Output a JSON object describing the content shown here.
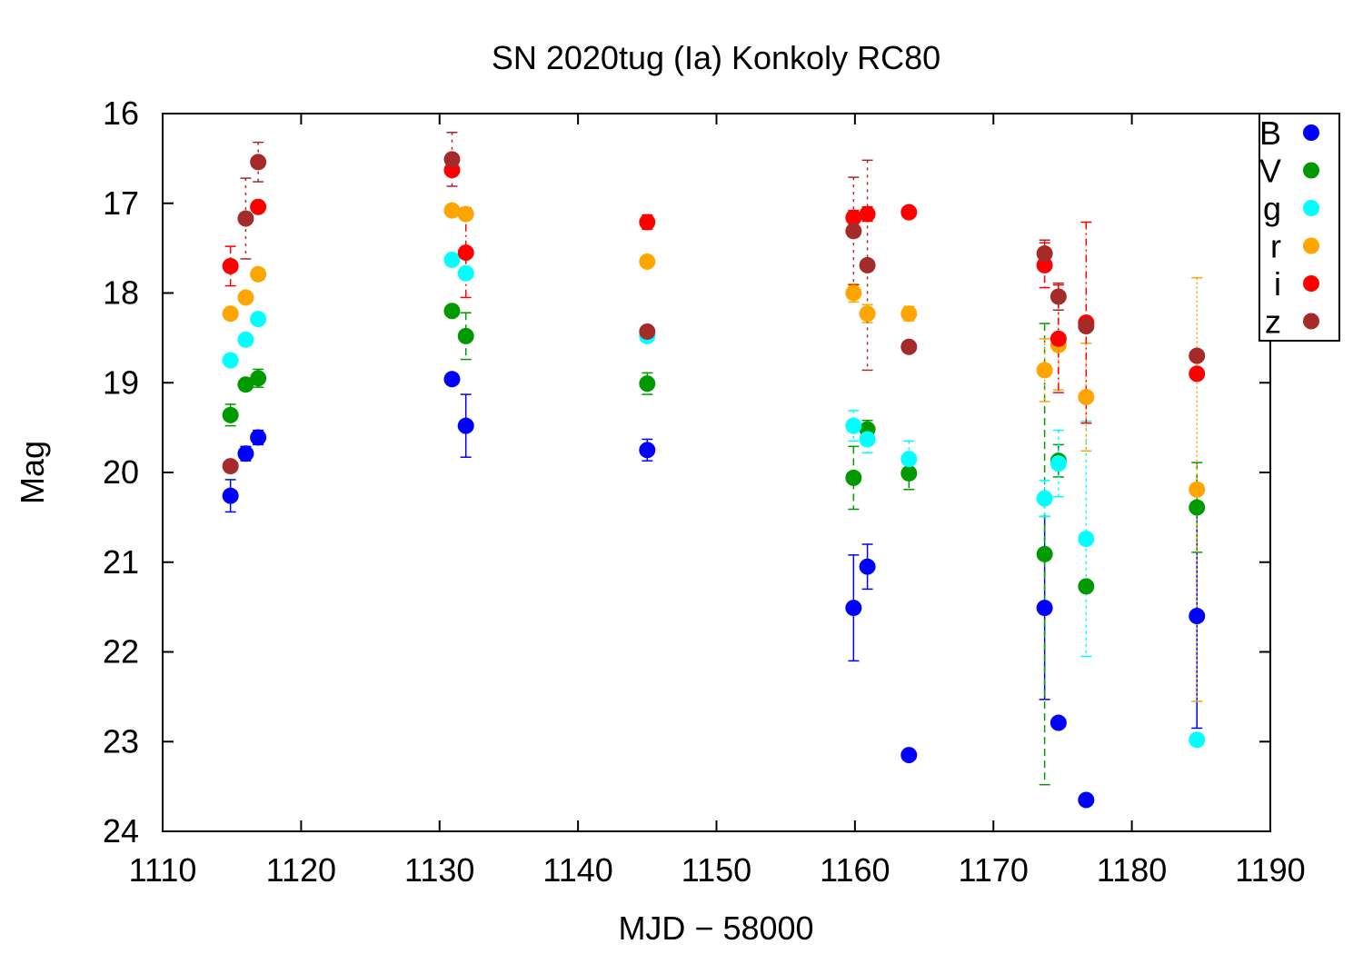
{
  "chart_data": {
    "type": "scatter",
    "title": "SN 2020tug (Ia) Konkoly RC80",
    "xlabel": "MJD − 58000",
    "ylabel": "Mag",
    "xlim": [
      1110,
      1190
    ],
    "ylim": [
      24,
      16
    ],
    "y_inverted": true,
    "xticks": [
      "1110",
      "1120",
      "1130",
      "1140",
      "1150",
      "1160",
      "1170",
      "1180",
      "1190"
    ],
    "yticks": [
      "16",
      "17",
      "18",
      "19",
      "20",
      "21",
      "22",
      "23",
      "24"
    ],
    "legend_position": "top-right",
    "grid": false,
    "series": [
      {
        "name": "B",
        "color": "#0000ff",
        "points": [
          {
            "x": 1114.9,
            "y": 20.26,
            "err": 0.18
          },
          {
            "x": 1116.0,
            "y": 19.79,
            "err": 0.08
          },
          {
            "x": 1116.9,
            "y": 19.61,
            "err": 0.08
          },
          {
            "x": 1130.9,
            "y": 18.96,
            "err": 0.06
          },
          {
            "x": 1131.9,
            "y": 19.48,
            "err": 0.35
          },
          {
            "x": 1145.0,
            "y": 19.75,
            "err": 0.12
          },
          {
            "x": 1159.9,
            "y": 21.51,
            "err": 0.59
          },
          {
            "x": 1160.9,
            "y": 21.05,
            "err": 0.25
          },
          {
            "x": 1163.9,
            "y": 23.15,
            "err": 0
          },
          {
            "x": 1173.7,
            "y": 21.51,
            "err": 1.02
          },
          {
            "x": 1174.7,
            "y": 22.79,
            "err": 0
          },
          {
            "x": 1176.7,
            "y": 23.65,
            "err": 0
          },
          {
            "x": 1184.7,
            "y": 21.6,
            "err": 1.25
          }
        ]
      },
      {
        "name": "V",
        "color": "#009900",
        "points": [
          {
            "x": 1114.9,
            "y": 19.36,
            "err": 0.12
          },
          {
            "x": 1116.0,
            "y": 19.02,
            "err": 0.06
          },
          {
            "x": 1116.9,
            "y": 18.95,
            "err": 0.1
          },
          {
            "x": 1130.9,
            "y": 18.2,
            "err": 0.05
          },
          {
            "x": 1131.9,
            "y": 18.48,
            "err": 0.26
          },
          {
            "x": 1145.0,
            "y": 19.01,
            "err": 0.12
          },
          {
            "x": 1159.9,
            "y": 20.06,
            "err": 0.35
          },
          {
            "x": 1160.9,
            "y": 19.52,
            "err": 0.1
          },
          {
            "x": 1163.9,
            "y": 20.01,
            "err": 0.18
          },
          {
            "x": 1173.7,
            "y": 20.91,
            "err": 2.57
          },
          {
            "x": 1174.7,
            "y": 19.87,
            "err": 0.18
          },
          {
            "x": 1176.7,
            "y": 21.27,
            "err": 0
          },
          {
            "x": 1184.7,
            "y": 20.39,
            "err": 0.5
          }
        ]
      },
      {
        "name": "g",
        "color": "#00ffff",
        "points": [
          {
            "x": 1114.9,
            "y": 18.75,
            "err": 0.06
          },
          {
            "x": 1116.0,
            "y": 18.52,
            "err": 0.05
          },
          {
            "x": 1116.9,
            "y": 18.29,
            "err": 0.05
          },
          {
            "x": 1130.9,
            "y": 17.63,
            "err": 0.04
          },
          {
            "x": 1131.9,
            "y": 17.78,
            "err": 0.05
          },
          {
            "x": 1145.0,
            "y": 18.48,
            "err": 0.05
          },
          {
            "x": 1159.9,
            "y": 19.48,
            "err": 0.17
          },
          {
            "x": 1160.9,
            "y": 19.63,
            "err": 0.15
          },
          {
            "x": 1163.9,
            "y": 19.85,
            "err": 0.2
          },
          {
            "x": 1173.7,
            "y": 20.29,
            "err": 0.2
          },
          {
            "x": 1174.7,
            "y": 19.9,
            "err": 0.37
          },
          {
            "x": 1176.7,
            "y": 20.74,
            "err": 1.31
          },
          {
            "x": 1184.7,
            "y": 22.98,
            "err": 0
          }
        ]
      },
      {
        "name": "r",
        "color": "#ffa500",
        "points": [
          {
            "x": 1114.9,
            "y": 18.23,
            "err": 0.05
          },
          {
            "x": 1116.0,
            "y": 18.05,
            "err": 0.04
          },
          {
            "x": 1116.9,
            "y": 17.79,
            "err": 0.04
          },
          {
            "x": 1130.9,
            "y": 17.08,
            "err": 0.03
          },
          {
            "x": 1131.9,
            "y": 17.12,
            "err": 0.04
          },
          {
            "x": 1145.0,
            "y": 17.65,
            "err": 0.04
          },
          {
            "x": 1159.9,
            "y": 18.0,
            "err": 0.1
          },
          {
            "x": 1160.9,
            "y": 18.23,
            "err": 0.1
          },
          {
            "x": 1163.9,
            "y": 18.23,
            "err": 0.08
          },
          {
            "x": 1173.7,
            "y": 18.86,
            "err": 0.35
          },
          {
            "x": 1174.7,
            "y": 18.58,
            "err": 0.5
          },
          {
            "x": 1176.7,
            "y": 19.16,
            "err": 0.6
          },
          {
            "x": 1184.7,
            "y": 20.19,
            "err": 2.36
          }
        ]
      },
      {
        "name": "i",
        "color": "#ff0000",
        "points": [
          {
            "x": 1114.9,
            "y": 17.7,
            "err": 0.22
          },
          {
            "x": 1116.9,
            "y": 17.04,
            "err": 0.05
          },
          {
            "x": 1130.9,
            "y": 16.63,
            "err": 0.05
          },
          {
            "x": 1131.9,
            "y": 17.55,
            "err": 0.5
          },
          {
            "x": 1145.0,
            "y": 17.21,
            "err": 0.08
          },
          {
            "x": 1159.9,
            "y": 17.16,
            "err": 0.08
          },
          {
            "x": 1160.9,
            "y": 17.12,
            "err": 0.08
          },
          {
            "x": 1163.9,
            "y": 17.1,
            "err": 0
          },
          {
            "x": 1173.7,
            "y": 17.69,
            "err": 0.25
          },
          {
            "x": 1174.7,
            "y": 18.51,
            "err": 0.6
          },
          {
            "x": 1176.7,
            "y": 18.33,
            "err": 1.12
          },
          {
            "x": 1184.7,
            "y": 18.9,
            "err": 0
          }
        ]
      },
      {
        "name": "z",
        "color": "#a52a2a",
        "points": [
          {
            "x": 1114.9,
            "y": 19.93,
            "err": 0
          },
          {
            "x": 1116.0,
            "y": 17.17,
            "err": 0.45
          },
          {
            "x": 1116.9,
            "y": 16.54,
            "err": 0.22
          },
          {
            "x": 1130.9,
            "y": 16.51,
            "err": 0.3
          },
          {
            "x": 1145.0,
            "y": 18.43,
            "err": 0
          },
          {
            "x": 1159.9,
            "y": 17.31,
            "err": 0.6
          },
          {
            "x": 1160.9,
            "y": 17.69,
            "err": 1.17
          },
          {
            "x": 1163.9,
            "y": 18.6,
            "err": 0
          },
          {
            "x": 1173.7,
            "y": 17.56,
            "err": 0.15
          },
          {
            "x": 1174.7,
            "y": 18.04,
            "err": 0.15
          },
          {
            "x": 1176.7,
            "y": 18.37,
            "err": 0
          },
          {
            "x": 1184.7,
            "y": 18.7,
            "err": 0
          }
        ]
      }
    ]
  }
}
